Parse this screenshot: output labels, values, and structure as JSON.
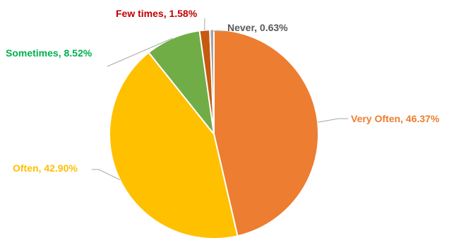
{
  "chart_data": {
    "type": "pie",
    "title": "",
    "slices": [
      {
        "label": "Very Often",
        "value": 46.37,
        "display": "Very Often, 46.37%",
        "color": "#ED7D31",
        "label_color": "#ED7D31"
      },
      {
        "label": "Often",
        "value": 42.9,
        "display": "Often, 42.90%",
        "color": "#FFC000",
        "label_color": "#FFC000"
      },
      {
        "label": "Sometimes",
        "value": 8.52,
        "display": "Sometimes, 8.52%",
        "color": "#70AD47",
        "label_color": "#00B050"
      },
      {
        "label": "Few times",
        "value": 1.58,
        "display": "Few times, 1.58%",
        "color": "#C55A11",
        "label_color": "#C00000"
      },
      {
        "label": "Never",
        "value": 0.63,
        "display": "Never, 0.63%",
        "color": "#A5A5A5",
        "label_color": "#595959"
      }
    ],
    "start_angle_deg": 0,
    "direction": "clockwise",
    "legend": "none",
    "label_position": "outside-with-leader-lines"
  }
}
